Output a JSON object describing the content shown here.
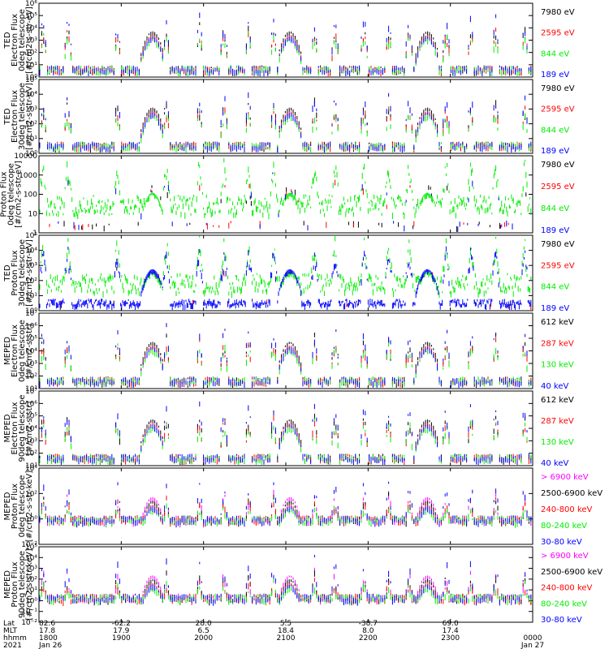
{
  "colors": {
    "black": "#000000",
    "red": "#ff0000",
    "green": "#00ee00",
    "blue": "#0000ff",
    "magenta": "#ff00ff"
  },
  "chart_data": [
    {
      "type": "scatter",
      "ylabel": [
        "TED",
        "Electron Flux",
        "0deg telescope",
        "[#/cm2-s-str-eV]"
      ],
      "yscale": "log",
      "ylim": [
        1,
        1000000
      ],
      "yticks": [
        "10⁰",
        "10¹",
        "10²",
        "10³",
        "10⁴",
        "10⁵",
        "10⁶"
      ],
      "series": [
        {
          "name": "7980 eV",
          "color": "black"
        },
        {
          "name": "2595 eV",
          "color": "red"
        },
        {
          "name": "844 eV",
          "color": "green"
        },
        {
          "name": "189 eV",
          "color": "blue"
        }
      ]
    },
    {
      "type": "scatter",
      "ylabel": [
        "TED",
        "Electron Flux",
        "30deg telescope",
        "[#/cm2-s-str-eV]"
      ],
      "yscale": "log",
      "ylim": [
        1,
        100000
      ],
      "yticks": [
        "10⁰",
        "10¹",
        "10²",
        "10³",
        "10⁴",
        "10⁵"
      ],
      "series": [
        {
          "name": "7980 eV",
          "color": "black"
        },
        {
          "name": "2595 eV",
          "color": "red"
        },
        {
          "name": "844 eV",
          "color": "green"
        },
        {
          "name": "189 eV",
          "color": "blue"
        }
      ]
    },
    {
      "type": "scatter",
      "ylabel": [
        "Proton Flux",
        "0deg telescope",
        "[#/cm2-s-str-eV]"
      ],
      "yscale": "log",
      "ylim": [
        1,
        10000
      ],
      "yticks": [
        "1",
        "10",
        "100",
        "1000",
        "10000"
      ],
      "series": [
        {
          "name": "7980 eV",
          "color": "black"
        },
        {
          "name": "2595 eV",
          "color": "red"
        },
        {
          "name": "844 eV",
          "color": "green"
        },
        {
          "name": "189 eV",
          "color": "blue"
        }
      ]
    },
    {
      "type": "scatter",
      "ylabel": [
        "TED",
        "Proton Flux",
        "30deg telescope",
        "[#/cm2-s-str-eV]"
      ],
      "yscale": "log",
      "ylim": [
        1,
        100000
      ],
      "yticks": [
        "10⁰",
        "10¹",
        "10²",
        "10³",
        "10⁴",
        "10⁵"
      ],
      "series": [
        {
          "name": "7980 eV",
          "color": "black"
        },
        {
          "name": "2595 eV",
          "color": "red"
        },
        {
          "name": "844 eV",
          "color": "green"
        },
        {
          "name": "189 eV",
          "color": "blue"
        }
      ]
    },
    {
      "type": "scatter",
      "ylabel": [
        "MEPED",
        "Electron Flux",
        "0deg telescope",
        "[#/cm2-s-str]"
      ],
      "yscale": "log",
      "ylim": [
        10,
        10000000
      ],
      "yticks": [
        "10¹",
        "10²",
        "10³",
        "10⁴",
        "10⁵",
        "10⁶",
        "10⁷"
      ],
      "series": [
        {
          "name": "612 keV",
          "color": "black"
        },
        {
          "name": "287 keV",
          "color": "red"
        },
        {
          "name": "130 keV",
          "color": "green"
        },
        {
          "name": "40 keV",
          "color": "blue"
        }
      ]
    },
    {
      "type": "scatter",
      "ylabel": [
        "MEPED",
        "Electron Flux",
        "90deg telescope",
        "[#/cm2-s-str]"
      ],
      "yscale": "log",
      "ylim": [
        10,
        10000000
      ],
      "yticks": [
        "10¹",
        "10²",
        "10³",
        "10⁴",
        "10⁵",
        "10⁶",
        "10⁷"
      ],
      "series": [
        {
          "name": "612 keV",
          "color": "black"
        },
        {
          "name": "287 keV",
          "color": "red"
        },
        {
          "name": "130 keV",
          "color": "green"
        },
        {
          "name": "40 keV",
          "color": "blue"
        }
      ]
    },
    {
      "type": "scatter",
      "ylabel": [
        "MEPED",
        "Proton Flux",
        "0deg telescope",
        "[#/cm2-s-str-keV]"
      ],
      "yscale": "log",
      "ylim": [
        0.01,
        1000000
      ],
      "yticks": [
        "10⁻²",
        "10⁰",
        "10²",
        "10⁴"
      ],
      "series": [
        {
          "name": "> 6900 keV",
          "color": "magenta"
        },
        {
          "name": "2500-6900 keV",
          "color": "black"
        },
        {
          "name": "240-800 keV",
          "color": "red"
        },
        {
          "name": "80-240 keV",
          "color": "green"
        },
        {
          "name": "30-80 keV",
          "color": "blue"
        }
      ]
    },
    {
      "type": "scatter",
      "ylabel": [
        "MEPED",
        "Proton Flux",
        "90deg telescope",
        "[#/cm2-s-str-keV]"
      ],
      "yscale": "log",
      "ylim": [
        0.01,
        1000000
      ],
      "yticks": [
        "10⁻²",
        "10⁻¹",
        "10⁰",
        "10¹",
        "10²",
        "10³",
        "10⁴",
        "10⁵"
      ],
      "series": [
        {
          "name": "> 6900 keV",
          "color": "magenta"
        },
        {
          "name": "2500-6900 keV",
          "color": "black"
        },
        {
          "name": "240-800 keV",
          "color": "red"
        },
        {
          "name": "80-240 keV",
          "color": "green"
        },
        {
          "name": "30-80 keV",
          "color": "blue"
        }
      ]
    }
  ],
  "time_axis": {
    "row_labels": [
      "Lat",
      "MLT",
      "hhmm",
      "2021"
    ],
    "ticks": [
      {
        "lat": "82.6",
        "mlt": "17.8",
        "hhmm": "1800",
        "date": "Jan 26",
        "hour": 18
      },
      {
        "lat": "-62.2",
        "mlt": "17.9",
        "hhmm": "1900",
        "date": "",
        "hour": 19
      },
      {
        "lat": "28.0",
        "mlt": "6.5",
        "hhmm": "2000",
        "date": "",
        "hour": 20
      },
      {
        "lat": "5.5",
        "mlt": "18.4",
        "hhmm": "2100",
        "date": "",
        "hour": 21
      },
      {
        "lat": "-38.7",
        "mlt": "8.0",
        "hhmm": "2200",
        "date": "",
        "hour": 22
      },
      {
        "lat": "69.0",
        "mlt": "17.4",
        "hhmm": "2300",
        "date": "",
        "hour": 23
      },
      {
        "lat": "",
        "mlt": "",
        "hhmm": "0000",
        "date": "Jan 27",
        "hour": 24
      }
    ],
    "xlim": [
      18,
      24
    ]
  }
}
